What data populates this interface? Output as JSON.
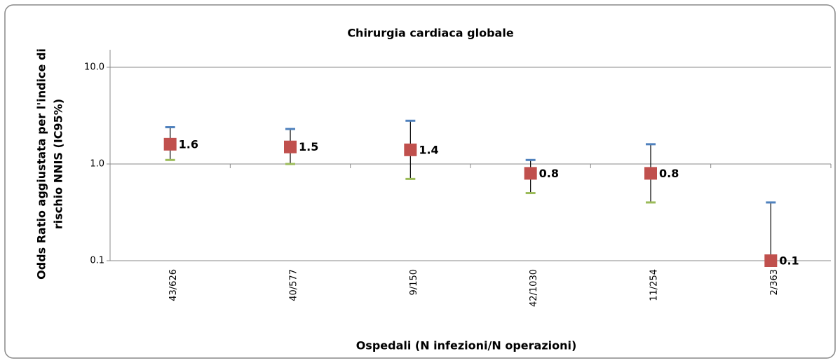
{
  "chart_data": {
    "type": "errorbar",
    "title": "Chirurgia cardiaca globale",
    "xlabel": "Ospedali (N infezioni/N operazioni)",
    "ylabel": [
      "Odds Ratio aggiustata per l'indice di",
      "rischio NNIS (IC95%)"
    ],
    "categories": [
      "43/626",
      "40/577",
      "9/150",
      "42/1030",
      "11/254",
      "2/363"
    ],
    "values": [
      1.6,
      1.5,
      1.4,
      0.8,
      0.8,
      0.1
    ],
    "upper": [
      2.4,
      2.3,
      2.8,
      1.1,
      1.6,
      0.4
    ],
    "lower": [
      1.1,
      1.0,
      0.7,
      0.5,
      0.4,
      0.1
    ],
    "color": "#c0504d",
    "upper_color": "#4f81bd",
    "lower_color": "#9bbb59",
    "log_scale": true,
    "ylim": [
      0.1,
      10
    ],
    "yticks": [
      0.1,
      {
        "value": 1,
        "label": "1.0"
      },
      {
        "value": 10,
        "label": "10.0"
      }
    ],
    "grid": true
  }
}
